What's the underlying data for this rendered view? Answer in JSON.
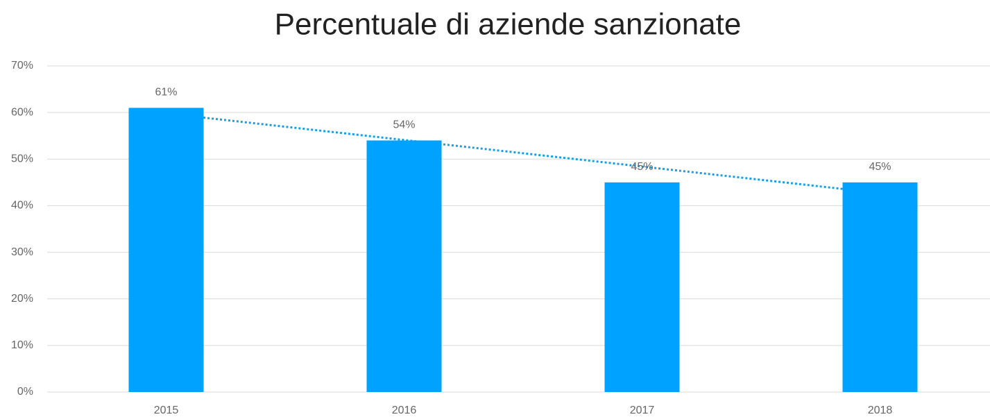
{
  "chart_data": {
    "type": "bar",
    "title": "Percentuale di aziende sanzionate",
    "categories": [
      "2015",
      "2016",
      "2017",
      "2018"
    ],
    "values": [
      61,
      54,
      45,
      45
    ],
    "value_labels": [
      "61%",
      "54%",
      "45%",
      "45%"
    ],
    "color": "#00a2ff",
    "ylim": [
      0,
      70
    ],
    "yticks": [
      {
        "value": 0,
        "label": "0%"
      },
      {
        "value": 10,
        "label": "10%"
      },
      {
        "value": 20,
        "label": "20%"
      },
      {
        "value": 30,
        "label": "30%"
      },
      {
        "value": 40,
        "label": "40%"
      },
      {
        "value": 50,
        "label": "50%"
      },
      {
        "value": 60,
        "label": "60%"
      },
      {
        "value": 70,
        "label": "70%"
      }
    ],
    "grid": true,
    "trendline": {
      "type": "linear",
      "color": "#1a9ee0",
      "style": "dotted"
    }
  }
}
